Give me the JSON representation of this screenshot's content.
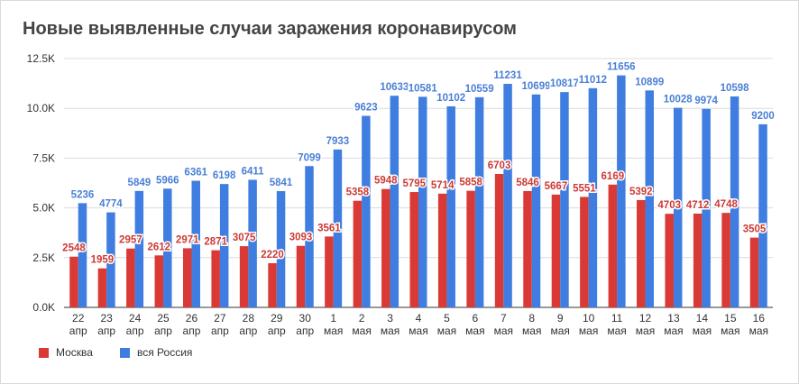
{
  "chart_data": {
    "type": "bar",
    "title": "Новые выявленные случаи заражения коронавирусом",
    "xlabel": "",
    "ylabel": "",
    "ylim": [
      0,
      12500
    ],
    "yticks": [
      {
        "value": 0,
        "label": "0.0K"
      },
      {
        "value": 2500,
        "label": "2.5K"
      },
      {
        "value": 5000,
        "label": "5.0K"
      },
      {
        "value": 7500,
        "label": "7.5K"
      },
      {
        "value": 10000,
        "label": "10.0K"
      },
      {
        "value": 12500,
        "label": "12.5K"
      }
    ],
    "grid": true,
    "legend_position": "bottom-left",
    "categories": [
      {
        "day": "22",
        "month": "апр"
      },
      {
        "day": "23",
        "month": "апр"
      },
      {
        "day": "24",
        "month": "апр"
      },
      {
        "day": "25",
        "month": "апр"
      },
      {
        "day": "26",
        "month": "апр"
      },
      {
        "day": "27",
        "month": "апр"
      },
      {
        "day": "28",
        "month": "апр"
      },
      {
        "day": "29",
        "month": "апр"
      },
      {
        "day": "30",
        "month": "апр"
      },
      {
        "day": "1",
        "month": "мая"
      },
      {
        "day": "2",
        "month": "мая"
      },
      {
        "day": "3",
        "month": "мая"
      },
      {
        "day": "4",
        "month": "мая"
      },
      {
        "day": "5",
        "month": "мая"
      },
      {
        "day": "6",
        "month": "мая"
      },
      {
        "day": "7",
        "month": "мая"
      },
      {
        "day": "8",
        "month": "мая"
      },
      {
        "day": "9",
        "month": "мая"
      },
      {
        "day": "10",
        "month": "мая"
      },
      {
        "day": "11",
        "month": "мая"
      },
      {
        "day": "12",
        "month": "мая"
      },
      {
        "day": "13",
        "month": "мая"
      },
      {
        "day": "14",
        "month": "мая"
      },
      {
        "day": "15",
        "month": "мая"
      },
      {
        "day": "16",
        "month": "мая"
      }
    ],
    "series": [
      {
        "name": "Москва",
        "color": "#d93a35",
        "label_color": "#cc3a35",
        "values": [
          2548,
          1959,
          2957,
          2612,
          2971,
          2871,
          3075,
          2220,
          3093,
          3561,
          5358,
          5948,
          5795,
          5714,
          5858,
          6703,
          5846,
          5667,
          5551,
          6169,
          5392,
          4703,
          4712,
          4748,
          3505
        ]
      },
      {
        "name": "вся Россия",
        "color": "#3f7ee0",
        "label_color": "#4a7fd6",
        "values": [
          5236,
          4774,
          5849,
          5966,
          6361,
          6198,
          6411,
          5841,
          7099,
          7933,
          9623,
          10633,
          10581,
          10102,
          10559,
          11231,
          10699,
          10817,
          11012,
          11656,
          10899,
          10028,
          9974,
          10598,
          9200
        ]
      }
    ]
  }
}
